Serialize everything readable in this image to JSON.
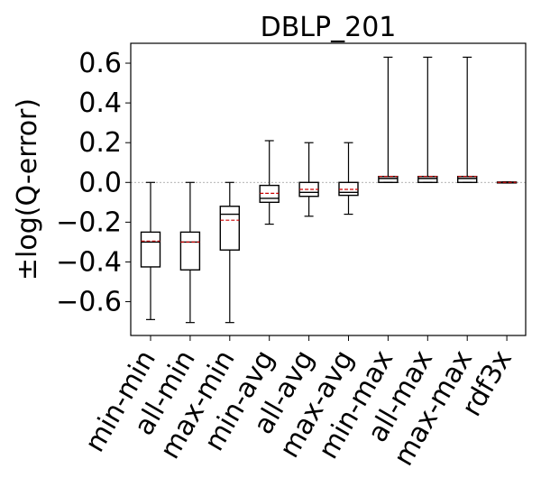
{
  "chart_data": {
    "type": "box",
    "title": "DBLP_201",
    "xlabel": "",
    "ylabel": "±log(Q-error)",
    "ylim": [
      -0.77,
      0.7
    ],
    "yticks": [
      -0.6,
      -0.4,
      -0.2,
      0.0,
      0.2,
      0.4,
      0.6
    ],
    "ytick_labels": [
      "−0.6",
      "−0.4",
      "−0.2",
      "0.0",
      "0.2",
      "0.4",
      "0.6"
    ],
    "reference_line": 0.0,
    "grid": false,
    "colors": {
      "box": "#000000",
      "median": "#000000",
      "mean": "#cc0000",
      "reference": "#999999"
    },
    "categories": [
      "min-min",
      "all-min",
      "max-min",
      "min-avg",
      "all-avg",
      "max-avg",
      "min-max",
      "all-max",
      "max-max",
      "rdf3x"
    ],
    "boxes": [
      {
        "whisker_low": -0.69,
        "q1": -0.425,
        "median": -0.3,
        "mean": -0.295,
        "q3": -0.25,
        "whisker_high": 0.0
      },
      {
        "whisker_low": -0.705,
        "q1": -0.44,
        "median": -0.3,
        "mean": -0.3,
        "q3": -0.25,
        "whisker_high": 0.0
      },
      {
        "whisker_low": -0.705,
        "q1": -0.34,
        "median": -0.16,
        "mean": -0.19,
        "q3": -0.12,
        "whisker_high": 0.0
      },
      {
        "whisker_low": -0.21,
        "q1": -0.1,
        "median": -0.08,
        "mean": -0.055,
        "q3": -0.015,
        "whisker_high": 0.21
      },
      {
        "whisker_low": -0.17,
        "q1": -0.07,
        "median": -0.05,
        "mean": -0.035,
        "q3": 0.0,
        "whisker_high": 0.2
      },
      {
        "whisker_low": -0.16,
        "q1": -0.065,
        "median": -0.05,
        "mean": -0.035,
        "q3": 0.0,
        "whisker_high": 0.2
      },
      {
        "whisker_low": 0.0,
        "q1": 0.0,
        "median": 0.02,
        "mean": 0.03,
        "q3": 0.03,
        "whisker_high": 0.63
      },
      {
        "whisker_low": 0.0,
        "q1": 0.0,
        "median": 0.02,
        "mean": 0.03,
        "q3": 0.03,
        "whisker_high": 0.63
      },
      {
        "whisker_low": 0.0,
        "q1": 0.0,
        "median": 0.02,
        "mean": 0.03,
        "q3": 0.03,
        "whisker_high": 0.63
      },
      {
        "whisker_low": -0.003,
        "q1": -0.002,
        "median": 0.0,
        "mean": 0.0,
        "q3": 0.002,
        "whisker_high": 0.003
      }
    ]
  }
}
